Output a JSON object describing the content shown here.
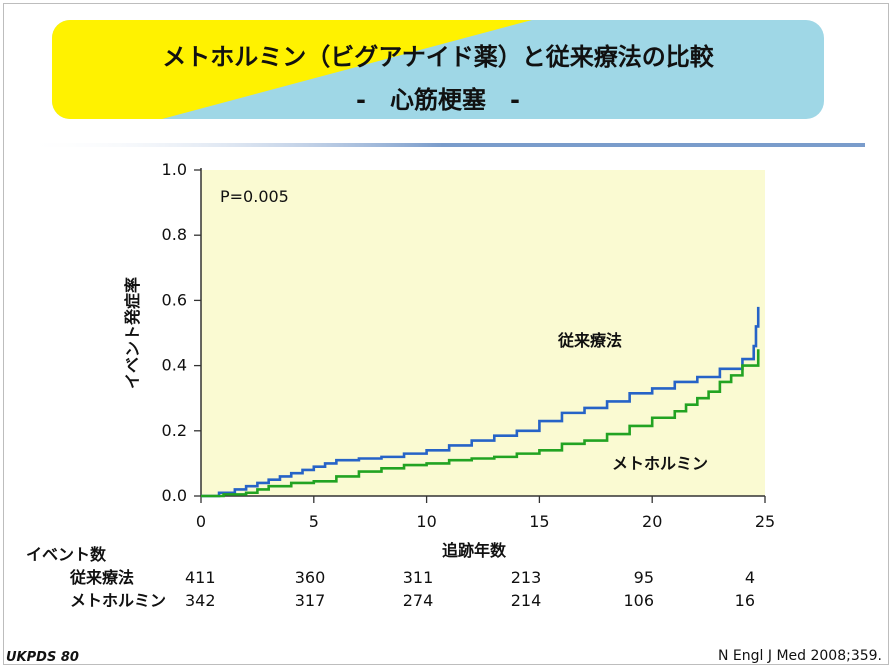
{
  "title": {
    "line1": "メトホルミン（ビグアナイド薬）と従来療法の比較",
    "line2": "-　心筋梗塞　-"
  },
  "colors": {
    "title_left": "#FFF200",
    "title_right": "#9FD7E6",
    "plot_bg": "#FAFAD2",
    "conventional": "#2663C7",
    "metformin": "#22A322",
    "divider": "#7A9CCB"
  },
  "chart_data": {
    "type": "line",
    "ylabel": "イベント発症率",
    "xlabel": "追跡年数",
    "xlim": [
      0,
      25
    ],
    "ylim": [
      0,
      1.0
    ],
    "x_ticks": [
      0,
      5,
      10,
      15,
      20,
      25
    ],
    "y_ticks": [
      0.0,
      0.2,
      0.4,
      0.6,
      0.8,
      1.0
    ],
    "y_tick_labels": [
      "0.0",
      "0.2",
      "0.4",
      "0.6",
      "0.8",
      "1.0"
    ],
    "grid": false,
    "annotation": "P=0.005",
    "series": [
      {
        "name": "従来療法",
        "line_type": "step",
        "x": [
          0,
          0.8,
          1.5,
          2.0,
          2.5,
          3.0,
          3.5,
          4.0,
          4.5,
          5.0,
          5.5,
          6.0,
          7.0,
          8.0,
          9.0,
          10.0,
          11.0,
          12.0,
          13.0,
          14.0,
          15.0,
          16.0,
          17.0,
          18.0,
          19.0,
          20.0,
          21.0,
          22.0,
          23.0,
          24.0,
          24.5,
          24.6,
          24.7
        ],
        "y": [
          0.0,
          0.01,
          0.02,
          0.03,
          0.04,
          0.05,
          0.06,
          0.07,
          0.08,
          0.09,
          0.1,
          0.11,
          0.115,
          0.12,
          0.13,
          0.14,
          0.155,
          0.17,
          0.185,
          0.2,
          0.23,
          0.255,
          0.27,
          0.29,
          0.315,
          0.33,
          0.35,
          0.365,
          0.39,
          0.42,
          0.46,
          0.52,
          0.58
        ]
      },
      {
        "name": "メトホルミン",
        "line_type": "step",
        "x": [
          0,
          1.0,
          2.0,
          2.5,
          3.0,
          4.0,
          5.0,
          6.0,
          7.0,
          8.0,
          9.0,
          10.0,
          11.0,
          12.0,
          13.0,
          14.0,
          15.0,
          16.0,
          17.0,
          18.0,
          19.0,
          20.0,
          21.0,
          21.5,
          22.0,
          22.5,
          23.0,
          23.5,
          24.0,
          24.7
        ],
        "y": [
          0.0,
          0.005,
          0.01,
          0.02,
          0.03,
          0.04,
          0.045,
          0.06,
          0.075,
          0.085,
          0.095,
          0.1,
          0.11,
          0.115,
          0.12,
          0.13,
          0.14,
          0.16,
          0.17,
          0.19,
          0.215,
          0.24,
          0.26,
          0.28,
          0.3,
          0.32,
          0.35,
          0.37,
          0.4,
          0.45
        ]
      }
    ],
    "curve_labels": [
      "従来療法",
      "メトホルミン"
    ],
    "at_risk": {
      "header": "イベント数",
      "rows": [
        {
          "label": "従来療法",
          "values": [
            "411",
            "360",
            "311",
            "213",
            "95",
            "4"
          ]
        },
        {
          "label": "メトホルミン",
          "values": [
            "342",
            "317",
            "274",
            "214",
            "106",
            "16"
          ]
        }
      ]
    }
  },
  "source": "N Engl J Med 2008;359.",
  "logo": "UKPDS 80"
}
